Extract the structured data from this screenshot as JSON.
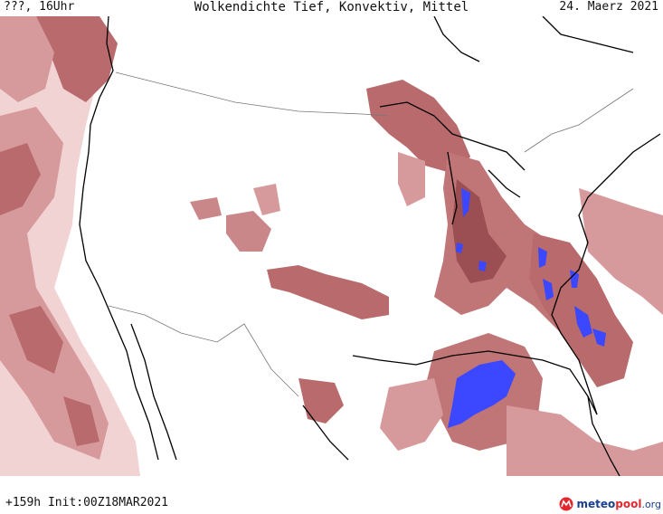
{
  "header": {
    "location_time": "???, 16Uhr",
    "title": "Wolkendichte  Tief, Konvektiv, Mittel",
    "date": "24. Maerz 2021"
  },
  "footer": {
    "run_info": "+159h  Init:00Z18MAR2021"
  },
  "logo": {
    "name_part1": "meteo",
    "name_part2": "pool",
    "tld": ".org",
    "icon": "meteopool-logo-icon"
  },
  "map": {
    "region": "North America",
    "colors": {
      "cloud_low": "#f2d3d4",
      "cloud_mid": "#d79a9c",
      "cloud_high": "#b86a6c",
      "cloud_dense": "#9c4f52",
      "convective": "#3b48ff",
      "coastline": "#000000",
      "border": "#777777"
    }
  }
}
